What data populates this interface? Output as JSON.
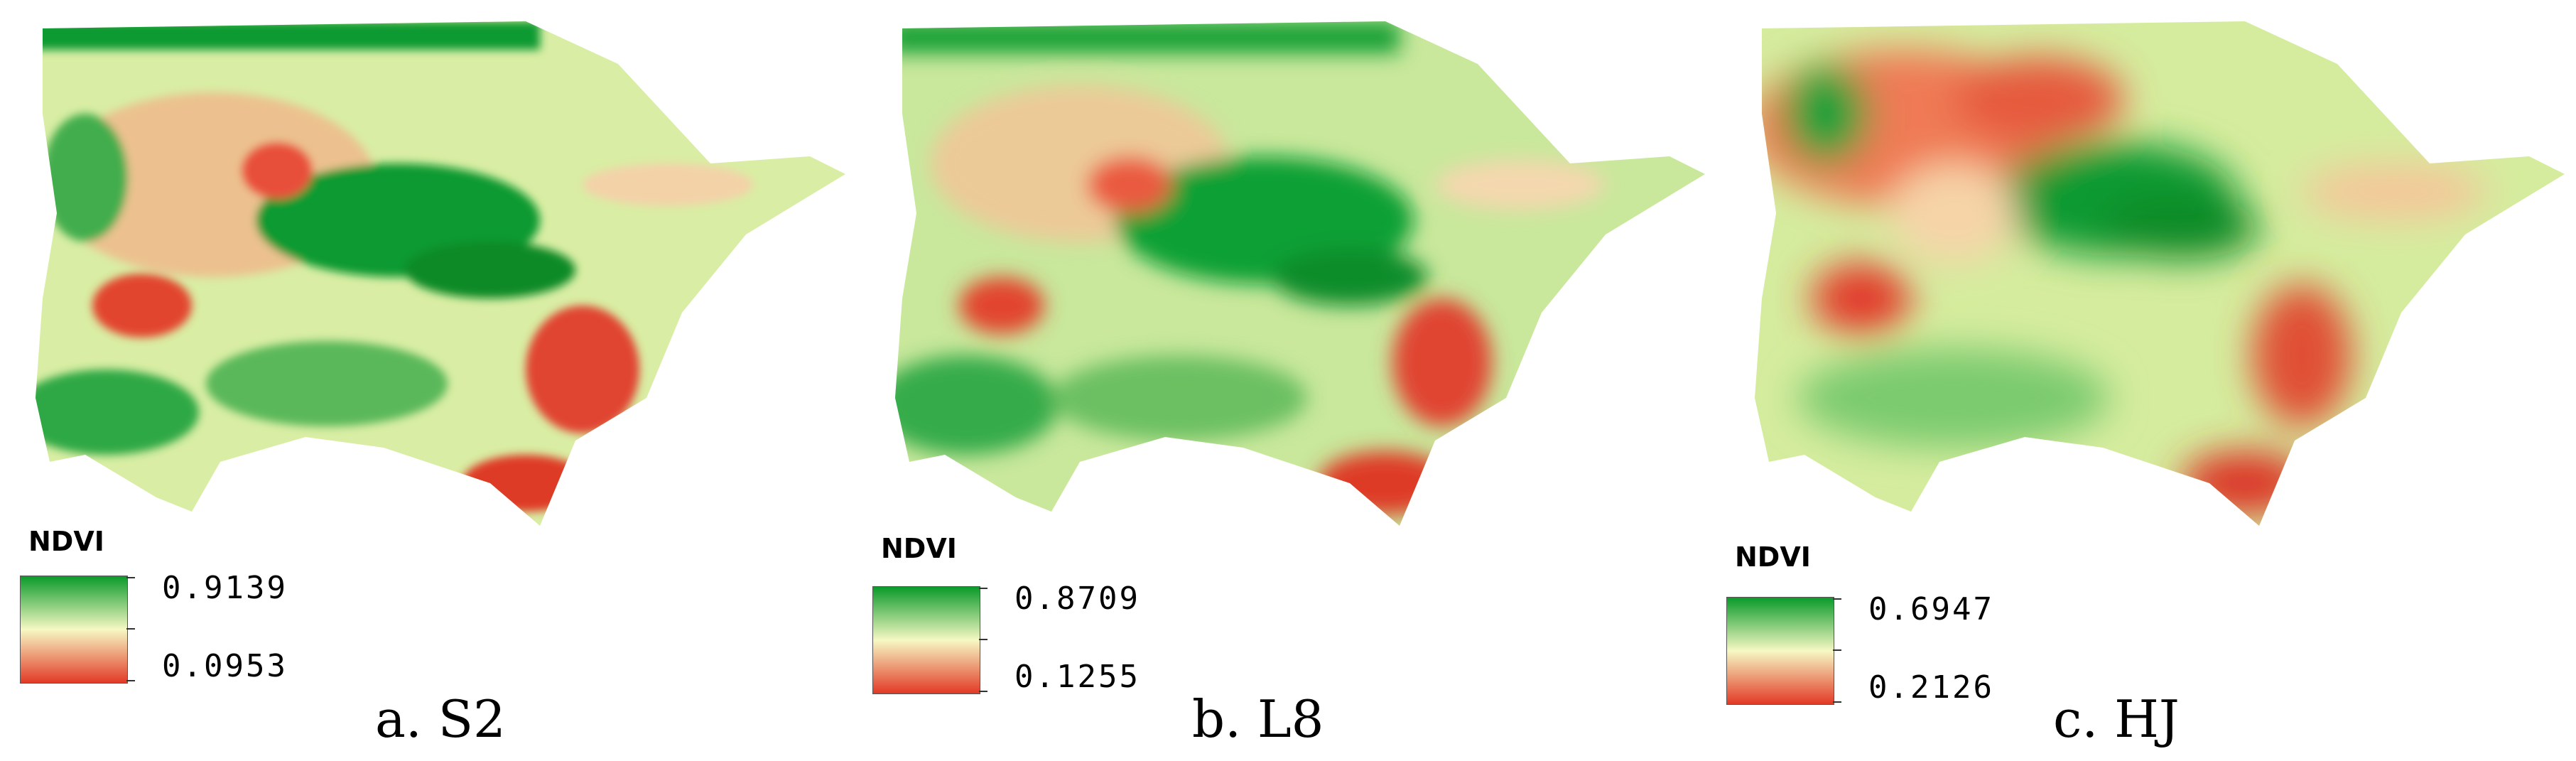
{
  "panels": [
    {
      "legend_title": "NDVI",
      "max_value": "0.9139",
      "min_value": "0.0953",
      "caption": "a. S2",
      "color_max": "#0a9a2a",
      "color_mid": "#f6f8c4",
      "color_min": "#e23a26"
    },
    {
      "legend_title": "NDVI",
      "max_value": "0.8709",
      "min_value": "0.1255",
      "caption": "b. L8",
      "color_max": "#0a9a2a",
      "color_mid": "#f6f8c4",
      "color_min": "#e23a26"
    },
    {
      "legend_title": "NDVI",
      "max_value": "0.6947",
      "min_value": "0.2126",
      "caption": "c. HJ",
      "color_max": "#0a9a2a",
      "color_mid": "#f6f8c4",
      "color_min": "#e23a26"
    }
  ]
}
